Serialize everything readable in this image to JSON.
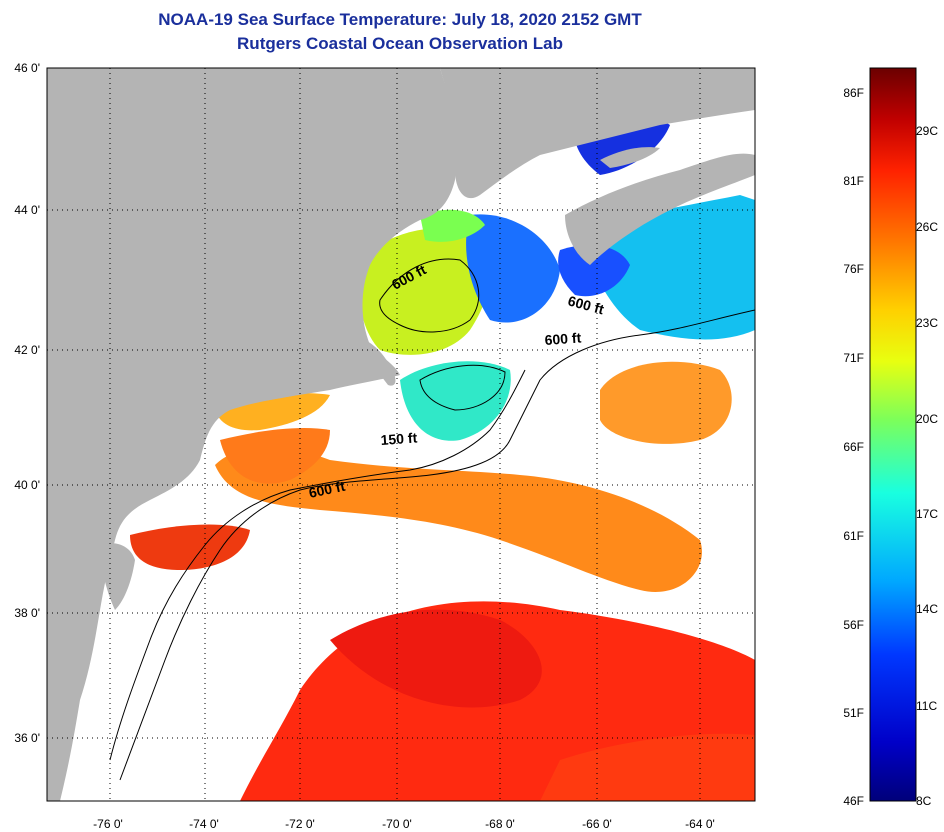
{
  "title": {
    "line1": "NOAA-19 Sea Surface Temperature:  July 18, 2020 2152 GMT",
    "line2": "Rutgers Coastal Ocean Observation Lab"
  },
  "map": {
    "lat_labels": [
      "46 0'",
      "44 0'",
      "42 0'",
      "40 0'",
      "38 0'",
      "36 0'"
    ],
    "lon_labels": [
      "-76 0'",
      "-74 0'",
      "-72 0'",
      "-70 0'",
      "-68 0'",
      "-66 0'",
      "-64 0'"
    ],
    "contour_labels": [
      "600 ft",
      "600 ft",
      "600 ft",
      "150 ft",
      "600 ft"
    ],
    "land_color": "#b4b4b4",
    "cloud_color": "#ffffff"
  },
  "colorbar": {
    "fahrenheit": [
      "86F",
      "81F",
      "76F",
      "71F",
      "66F",
      "61F",
      "56F",
      "51F",
      "46F"
    ],
    "celsius": [
      "29C",
      "26C",
      "23C",
      "20C",
      "17C",
      "14C",
      "11C",
      "8C"
    ],
    "colors": [
      "#6b0000",
      "#c00000",
      "#ff2200",
      "#ff7a00",
      "#ffd000",
      "#e8ff10",
      "#7cff5a",
      "#19ffe0",
      "#00a8ff",
      "#0038ff",
      "#0000c8",
      "#00007a"
    ]
  }
}
